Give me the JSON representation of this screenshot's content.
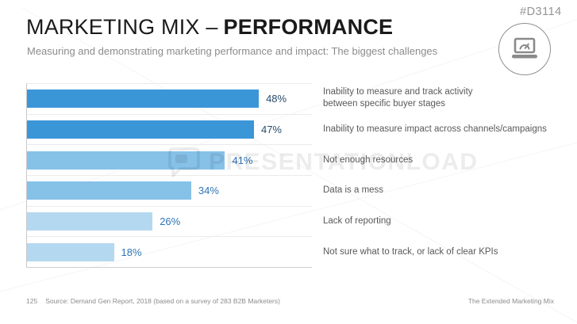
{
  "header": {
    "code": "#D3114",
    "title_regular": "MARKETING MIX –",
    "title_bold": "PERFORMANCE",
    "subtitle": "Measuring and demonstrating marketing performance and impact: The biggest challenges"
  },
  "chart_data": {
    "type": "bar",
    "orientation": "horizontal",
    "categories": [
      "Inability to measure and track activity\nbetween specific buyer stages",
      "Inability to measure impact across channels/campaigns",
      "Not enough resources",
      "Data is a mess",
      "Lack of reporting",
      "Not sure what to track, or lack of clear KPIs"
    ],
    "values": [
      48,
      47,
      41,
      34,
      26,
      18
    ],
    "value_labels": [
      "48%",
      "47%",
      "41%",
      "34%",
      "26%",
      "18%"
    ],
    "axis_max_estimate": 59,
    "grid": "row-separator-lines",
    "legend": "none",
    "bar_colors": [
      "#3b96d8",
      "#3b96d8",
      "#86c1e8",
      "#86c1e8",
      "#b5d8f1",
      "#b5d8f1"
    ],
    "value_label_colors": [
      "#2a4b6e",
      "#2a4b6e",
      "#2e75b6",
      "#2e75b6",
      "#2e75b6",
      "#2e75b6"
    ]
  },
  "footer": {
    "page_number": "125",
    "source": "Source: Demand Gen Report, 2018 (based on a survey of 283 B2B Marketers)",
    "right_text": "The Extended Marketing Mix"
  },
  "watermark": {
    "text": "PRESENTATIONLOAD"
  },
  "icons": {
    "badge": "laptop-gauge-icon",
    "watermark_logo": "speech-bubble-icon"
  },
  "colors": {
    "title": "#1a1a1a",
    "subtitle": "#8c8c8c",
    "category_label": "#595959",
    "code": "#949494",
    "icon": "#8a8a8a",
    "axis_line": "#c9c9c9",
    "separator": "#ebebeb"
  }
}
